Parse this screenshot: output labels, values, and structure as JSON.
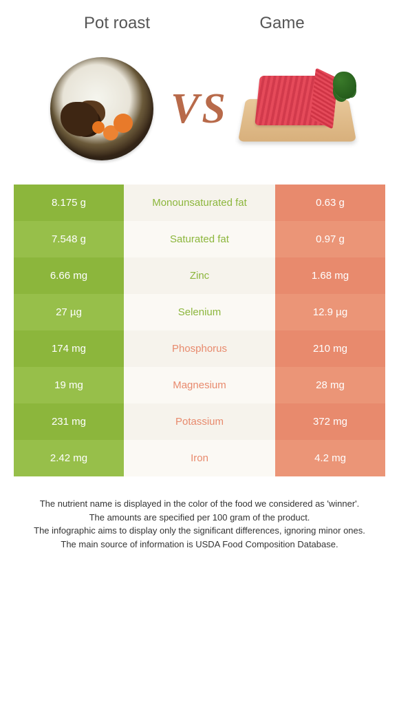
{
  "colors": {
    "left_a": "#8cb63c",
    "left_b": "#97bf4a",
    "right_a": "#e88a6d",
    "right_b": "#eb9577",
    "mid_a": "#f6f3ec",
    "mid_b": "#fbf9f4",
    "nutrient_left_text": "#8cb63c",
    "nutrient_right_text": "#e88a6d",
    "vs_color": "#b86a4a"
  },
  "header": {
    "left": "Pot roast",
    "right": "Game"
  },
  "vs_text": "VS",
  "rows": [
    {
      "left": "8.175 g",
      "nutrient": "Monounsaturated fat",
      "right": "0.63 g",
      "winner": "left"
    },
    {
      "left": "7.548 g",
      "nutrient": "Saturated fat",
      "right": "0.97 g",
      "winner": "left"
    },
    {
      "left": "6.66 mg",
      "nutrient": "Zinc",
      "right": "1.68 mg",
      "winner": "left"
    },
    {
      "left": "27 µg",
      "nutrient": "Selenium",
      "right": "12.9 µg",
      "winner": "left"
    },
    {
      "left": "174 mg",
      "nutrient": "Phosphorus",
      "right": "210 mg",
      "winner": "right"
    },
    {
      "left": "19 mg",
      "nutrient": "Magnesium",
      "right": "28 mg",
      "winner": "right"
    },
    {
      "left": "231 mg",
      "nutrient": "Potassium",
      "right": "372 mg",
      "winner": "right"
    },
    {
      "left": "2.42 mg",
      "nutrient": "Iron",
      "right": "4.2 mg",
      "winner": "right"
    }
  ],
  "footer_lines": [
    "The nutrient name is displayed in the color of the food we considered as 'winner'.",
    "The amounts are specified per 100 gram of the product.",
    "The infographic aims to display only the significant differences, ignoring minor ones.",
    "The main source of information is USDA Food Composition Database."
  ]
}
